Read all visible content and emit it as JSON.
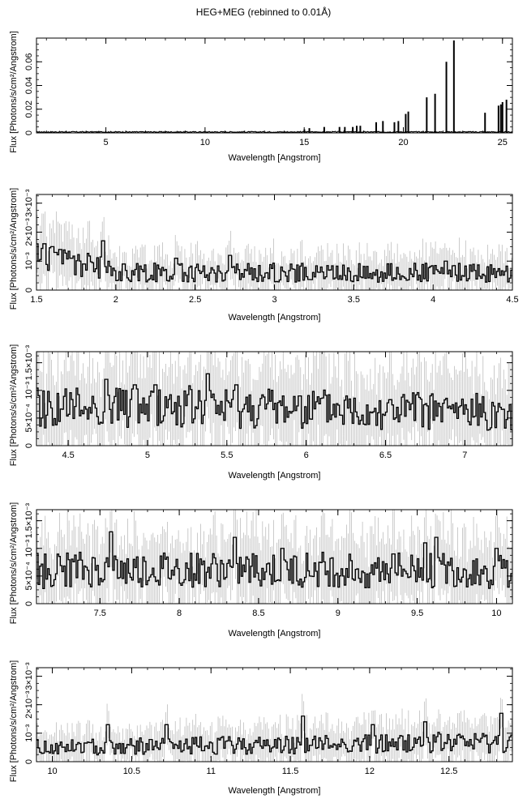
{
  "title": "HEG+MEG (rebinned to 0.01Å)",
  "chart_data": [
    {
      "type": "line",
      "title": "HEG+MEG (rebinned to 0.01Å)",
      "xlabel": "Wavelength [Angstrom]",
      "ylabel": "Flux [Photons/s/cm²/Angstrom]",
      "xlim": [
        1.5,
        25.5
      ],
      "ylim": [
        0,
        0.08
      ],
      "xticks": [
        {
          "v": 5,
          "label": "5"
        },
        {
          "v": 10,
          "label": "10"
        },
        {
          "v": 15,
          "label": "15"
        },
        {
          "v": 20,
          "label": "20"
        },
        {
          "v": 25,
          "label": "25"
        }
      ],
      "yticks": [
        {
          "v": 0,
          "label": "0"
        },
        {
          "v": 0.02,
          "label": "0.02"
        },
        {
          "v": 0.04,
          "label": "0.04"
        },
        {
          "v": 0.06,
          "label": "0.06"
        }
      ],
      "lines": [
        {
          "x": 15.01,
          "y": 0.003
        },
        {
          "x": 15.26,
          "y": 0.004
        },
        {
          "x": 16.01,
          "y": 0.005
        },
        {
          "x": 16.78,
          "y": 0.005
        },
        {
          "x": 17.05,
          "y": 0.005
        },
        {
          "x": 17.45,
          "y": 0.005
        },
        {
          "x": 17.65,
          "y": 0.006
        },
        {
          "x": 17.83,
          "y": 0.006
        },
        {
          "x": 18.63,
          "y": 0.009
        },
        {
          "x": 18.97,
          "y": 0.01
        },
        {
          "x": 19.55,
          "y": 0.009
        },
        {
          "x": 19.75,
          "y": 0.01
        },
        {
          "x": 20.12,
          "y": 0.016
        },
        {
          "x": 20.25,
          "y": 0.018
        },
        {
          "x": 21.18,
          "y": 0.03
        },
        {
          "x": 21.6,
          "y": 0.033
        },
        {
          "x": 22.17,
          "y": 0.06
        },
        {
          "x": 22.55,
          "y": 0.078
        },
        {
          "x": 24.12,
          "y": 0.017
        },
        {
          "x": 24.8,
          "y": 0.023
        },
        {
          "x": 24.92,
          "y": 0.024
        },
        {
          "x": 25.0,
          "y": 0.026
        },
        {
          "x": 25.2,
          "y": 0.028
        }
      ]
    },
    {
      "type": "line",
      "xlabel": "Wavelength [Angstrom]",
      "ylabel": "Flux [Photons/s/cm²/Angstrom]",
      "xlim": [
        1.5,
        4.5
      ],
      "ylim": [
        0,
        0.0033
      ],
      "xticks": [
        {
          "v": 1.5,
          "label": "1.5"
        },
        {
          "v": 2,
          "label": "2"
        },
        {
          "v": 2.5,
          "label": "2.5"
        },
        {
          "v": 3,
          "label": "3"
        },
        {
          "v": 3.5,
          "label": "3.5"
        },
        {
          "v": 4,
          "label": "4"
        },
        {
          "v": 4.5,
          "label": "4.5"
        }
      ],
      "yticks": [
        {
          "v": 0,
          "label": "0"
        },
        {
          "v": 0.001,
          "label": "10⁻³"
        },
        {
          "v": 0.002,
          "label": "2×10⁻³"
        },
        {
          "v": 0.003,
          "label": "3×10⁻³"
        }
      ],
      "profile": [
        {
          "x": 1.5,
          "y": 0.0011
        },
        {
          "x": 1.8,
          "y": 0.0009
        },
        {
          "x": 2.0,
          "y": 0.0006
        },
        {
          "x": 3.0,
          "y": 0.0006
        },
        {
          "x": 4.5,
          "y": 0.0006
        }
      ],
      "peaks": [
        {
          "x": 1.55,
          "y": 0.0016
        },
        {
          "x": 1.6,
          "y": 0.0015
        },
        {
          "x": 1.62,
          "y": 0.0013
        },
        {
          "x": 1.65,
          "y": 0.0014
        },
        {
          "x": 1.72,
          "y": 0.0011
        },
        {
          "x": 1.8,
          "y": 0.0009
        },
        {
          "x": 1.92,
          "y": 0.0017
        },
        {
          "x": 2.05,
          "y": 0.0009
        },
        {
          "x": 2.38,
          "y": 0.0011
        },
        {
          "x": 2.72,
          "y": 0.0012
        },
        {
          "x": 4.08,
          "y": 0.001
        }
      ]
    },
    {
      "type": "line",
      "xlabel": "Wavelength [Angstrom]",
      "ylabel": "Flux [Photons/s/cm²/Angstrom]",
      "xlim": [
        4.3,
        7.3
      ],
      "ylim": [
        0,
        0.0017
      ],
      "xticks": [
        {
          "v": 4.5,
          "label": "4.5"
        },
        {
          "v": 5,
          "label": "5"
        },
        {
          "v": 5.5,
          "label": "5.5"
        },
        {
          "v": 6,
          "label": "6"
        },
        {
          "v": 6.5,
          "label": "6.5"
        },
        {
          "v": 7,
          "label": "7"
        }
      ],
      "yticks": [
        {
          "v": 0,
          "label": "0"
        },
        {
          "v": 0.0005,
          "label": "5×10⁻⁴"
        },
        {
          "v": 0.001,
          "label": "10⁻³"
        },
        {
          "v": 0.0015,
          "label": "1.5×10⁻³"
        }
      ],
      "profile": [
        {
          "x": 4.3,
          "y": 0.0007
        },
        {
          "x": 5.5,
          "y": 0.0007
        },
        {
          "x": 7.3,
          "y": 0.0006
        }
      ],
      "peaks": [
        {
          "x": 4.74,
          "y": 0.0012
        },
        {
          "x": 4.92,
          "y": 0.0011
        },
        {
          "x": 5.05,
          "y": 0.0011
        },
        {
          "x": 5.38,
          "y": 0.0013
        },
        {
          "x": 5.56,
          "y": 0.0011
        },
        {
          "x": 5.96,
          "y": 0.0009
        }
      ]
    },
    {
      "type": "line",
      "xlabel": "Wavelength [Angstrom]",
      "ylabel": "Flux [Photons/s/cm²/Angstrom]",
      "xlim": [
        7.1,
        10.1
      ],
      "ylim": [
        0,
        0.0017
      ],
      "xticks": [
        {
          "v": 7.5,
          "label": "7.5"
        },
        {
          "v": 8,
          "label": "8"
        },
        {
          "v": 8.5,
          "label": "8.5"
        },
        {
          "v": 9,
          "label": "9"
        },
        {
          "v": 9.5,
          "label": "9.5"
        },
        {
          "v": 10,
          "label": "10"
        }
      ],
      "yticks": [
        {
          "v": 0,
          "label": "0"
        },
        {
          "v": 0.0005,
          "label": "5×10⁻⁴"
        },
        {
          "v": 0.001,
          "label": "10⁻³"
        },
        {
          "v": 0.0015,
          "label": "1.5×10⁻³"
        }
      ],
      "profile": [
        {
          "x": 7.1,
          "y": 0.0006
        },
        {
          "x": 8.5,
          "y": 0.0006
        },
        {
          "x": 10.1,
          "y": 0.0006
        }
      ],
      "peaks": [
        {
          "x": 7.57,
          "y": 0.0013
        },
        {
          "x": 8.35,
          "y": 0.0012
        },
        {
          "x": 8.65,
          "y": 0.001
        },
        {
          "x": 9.35,
          "y": 0.0009
        },
        {
          "x": 9.55,
          "y": 0.0011
        },
        {
          "x": 9.62,
          "y": 0.0012
        },
        {
          "x": 10.0,
          "y": 0.001
        }
      ]
    },
    {
      "type": "line",
      "xlabel": "Wavelength [Angstrom]",
      "ylabel": "Flux [Photons/s/cm²/Angstrom]",
      "xlim": [
        9.9,
        12.9
      ],
      "ylim": [
        0,
        0.0033
      ],
      "xticks": [
        {
          "v": 10,
          "label": "10"
        },
        {
          "v": 10.5,
          "label": "10.5"
        },
        {
          "v": 11,
          "label": "11"
        },
        {
          "v": 11.5,
          "label": "11.5"
        },
        {
          "v": 12,
          "label": "12"
        },
        {
          "v": 12.5,
          "label": "12.5"
        }
      ],
      "yticks": [
        {
          "v": 0,
          "label": "0"
        },
        {
          "v": 0.001,
          "label": "10⁻³"
        },
        {
          "v": 0.002,
          "label": "2×10⁻³"
        },
        {
          "v": 0.003,
          "label": "3×10⁻³"
        }
      ],
      "profile": [
        {
          "x": 9.9,
          "y": 0.0005
        },
        {
          "x": 11.5,
          "y": 0.0006
        },
        {
          "x": 12.9,
          "y": 0.0007
        }
      ],
      "peaks": [
        {
          "x": 10.35,
          "y": 0.0013
        },
        {
          "x": 10.72,
          "y": 0.0013
        },
        {
          "x": 11.58,
          "y": 0.0016
        },
        {
          "x": 12.02,
          "y": 0.0013
        },
        {
          "x": 12.35,
          "y": 0.0014
        },
        {
          "x": 12.83,
          "y": 0.0017
        }
      ]
    }
  ]
}
